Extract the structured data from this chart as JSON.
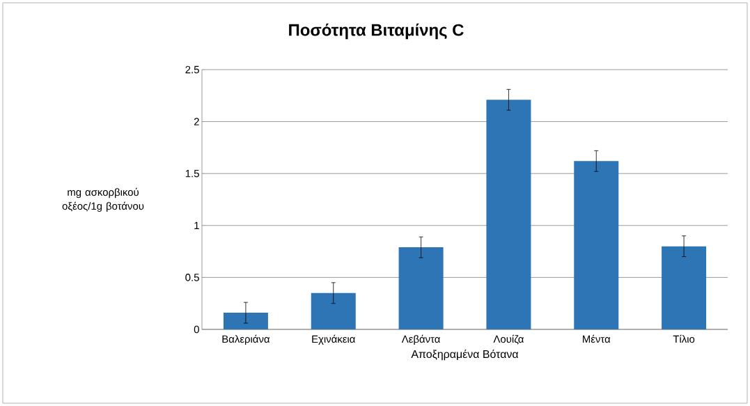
{
  "chart_data": {
    "type": "bar",
    "title": "Ποσότητα Βιταμίνης C",
    "xlabel": "Αποξηραμένα Βότανα",
    "ylabel": "mg ασκορβικού οξέος/1g βοτάνου",
    "categories": [
      "Βαλεριάνα",
      "Εχινάκεια",
      "Λεβάντα",
      "Λουίζα",
      "Μέντα",
      "Τίλιο"
    ],
    "values": [
      0.16,
      0.35,
      0.79,
      2.21,
      1.62,
      0.8
    ],
    "errors": [
      0.1,
      0.1,
      0.1,
      0.1,
      0.1,
      0.1
    ],
    "color": "#2e75b6",
    "ylim": [
      0,
      2.5
    ],
    "yticks": [
      0,
      0.5,
      1,
      1.5,
      2,
      2.5
    ],
    "grid": "y"
  }
}
